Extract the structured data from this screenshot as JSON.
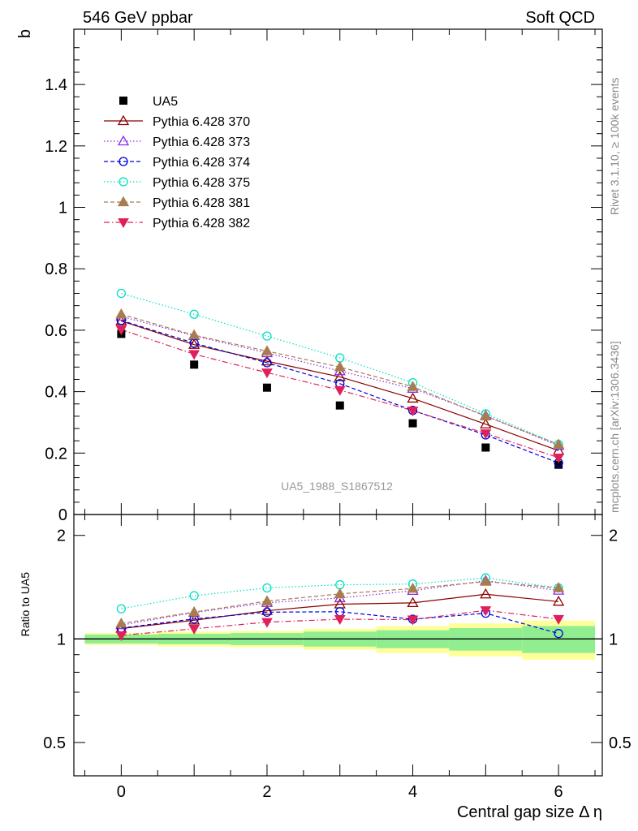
{
  "header": {
    "left_title": "546 GeV ppbar",
    "right_title": "Soft QCD"
  },
  "side_text": {
    "rivet": "Rivet 3.1.10, ≥ 100k events",
    "mcplots": "mcplots.cern.ch [arXiv:1306.3436]"
  },
  "watermark": "UA5_1988_S1867512",
  "chart_data": [
    {
      "type": "scatter",
      "panel": "main",
      "ylabel": "b",
      "xlabel": "",
      "xlim": [
        -0.65,
        6.6
      ],
      "ylim": [
        0,
        1.58
      ],
      "yticks": [
        "0",
        "0.2",
        "0.4",
        "0.6",
        "0.8",
        "1",
        "1.2",
        "1.4"
      ],
      "ytick_values": [
        0,
        0.2,
        0.4,
        0.6,
        0.8,
        1.0,
        1.2,
        1.4
      ],
      "legend_position": "top-left",
      "x": [
        0,
        1,
        2,
        3,
        4,
        5,
        6
      ],
      "series": [
        {
          "name": "UA5",
          "color": "#000000",
          "marker": "square-filled",
          "line": "none",
          "values": [
            0.588,
            0.488,
            0.413,
            0.355,
            0.297,
            0.218,
            0.162
          ]
        },
        {
          "name": "Pythia 6.428 370",
          "color": "#8b0000",
          "marker": "triangle-up-open",
          "line": "solid",
          "values": [
            0.63,
            0.553,
            0.499,
            0.448,
            0.378,
            0.294,
            0.208
          ]
        },
        {
          "name": "Pythia 6.428 373",
          "color": "#8a2be2",
          "marker": "triangle-up-open",
          "line": "dotted",
          "values": [
            0.645,
            0.582,
            0.526,
            0.467,
            0.41,
            0.322,
            0.224
          ]
        },
        {
          "name": "Pythia 6.428 374",
          "color": "#0000dd",
          "marker": "circle-open",
          "line": "dashed",
          "values": [
            0.632,
            0.558,
            0.494,
            0.426,
            0.339,
            0.259,
            0.168
          ]
        },
        {
          "name": "Pythia 6.428 375",
          "color": "#00e0c0",
          "marker": "circle-open",
          "line": "dotted",
          "values": [
            0.72,
            0.652,
            0.581,
            0.51,
            0.429,
            0.328,
            0.228
          ]
        },
        {
          "name": "Pythia 6.428 381",
          "color": "#a97c50",
          "marker": "triangle-up-filled",
          "line": "dashed",
          "values": [
            0.652,
            0.584,
            0.532,
            0.48,
            0.416,
            0.32,
            0.228
          ]
        },
        {
          "name": "Pythia 6.428 382",
          "color": "#e0205a",
          "marker": "triangle-down-filled",
          "line": "dashdot",
          "values": [
            0.602,
            0.522,
            0.462,
            0.405,
            0.338,
            0.264,
            0.185
          ]
        }
      ]
    },
    {
      "type": "scatter",
      "panel": "ratio",
      "ylabel": "Ratio to UA5",
      "xlabel": "Central gap size Δ η",
      "xlim": [
        -0.65,
        6.6
      ],
      "ylim": [
        0.4,
        2.3
      ],
      "yscale": "log",
      "xticks": [
        "0",
        "2",
        "4",
        "6"
      ],
      "xtick_values": [
        0,
        2,
        4,
        6
      ],
      "yticks": [
        "0.5",
        "1",
        "2"
      ],
      "ytick_values": [
        0.5,
        1,
        2
      ],
      "x": [
        0,
        1,
        2,
        3,
        4,
        5,
        6
      ],
      "bands": {
        "inner_color": "#90ee90",
        "outer_color": "#ffff99",
        "inner": [
          0.03,
          0.035,
          0.04,
          0.05,
          0.06,
          0.075,
          0.09
        ],
        "outer": [
          0.04,
          0.05,
          0.055,
          0.07,
          0.09,
          0.11,
          0.13
        ]
      },
      "series": [
        {
          "name": "Pythia 6.428 370",
          "color": "#8b0000",
          "marker": "triangle-up-open",
          "line": "solid",
          "values": [
            1.072,
            1.133,
            1.208,
            1.262,
            1.273,
            1.349,
            1.284
          ]
        },
        {
          "name": "Pythia 6.428 373",
          "color": "#8a2be2",
          "marker": "triangle-up-open",
          "line": "dotted",
          "values": [
            1.097,
            1.193,
            1.274,
            1.315,
            1.381,
            1.477,
            1.383
          ]
        },
        {
          "name": "Pythia 6.428 374",
          "color": "#0000dd",
          "marker": "circle-open",
          "line": "dashed",
          "values": [
            1.075,
            1.143,
            1.196,
            1.2,
            1.141,
            1.188,
            1.037
          ]
        },
        {
          "name": "Pythia 6.428 375",
          "color": "#00e0c0",
          "marker": "circle-open",
          "line": "dotted",
          "values": [
            1.224,
            1.336,
            1.407,
            1.437,
            1.444,
            1.505,
            1.407
          ]
        },
        {
          "name": "Pythia 6.428 381",
          "color": "#a97c50",
          "marker": "triangle-up-filled",
          "line": "dashed",
          "values": [
            1.109,
            1.197,
            1.288,
            1.352,
            1.401,
            1.468,
            1.407
          ]
        },
        {
          "name": "Pythia 6.428 382",
          "color": "#e0205a",
          "marker": "triangle-down-filled",
          "line": "dashdot",
          "values": [
            1.024,
            1.07,
            1.119,
            1.141,
            1.138,
            1.211,
            1.142
          ]
        }
      ]
    }
  ]
}
